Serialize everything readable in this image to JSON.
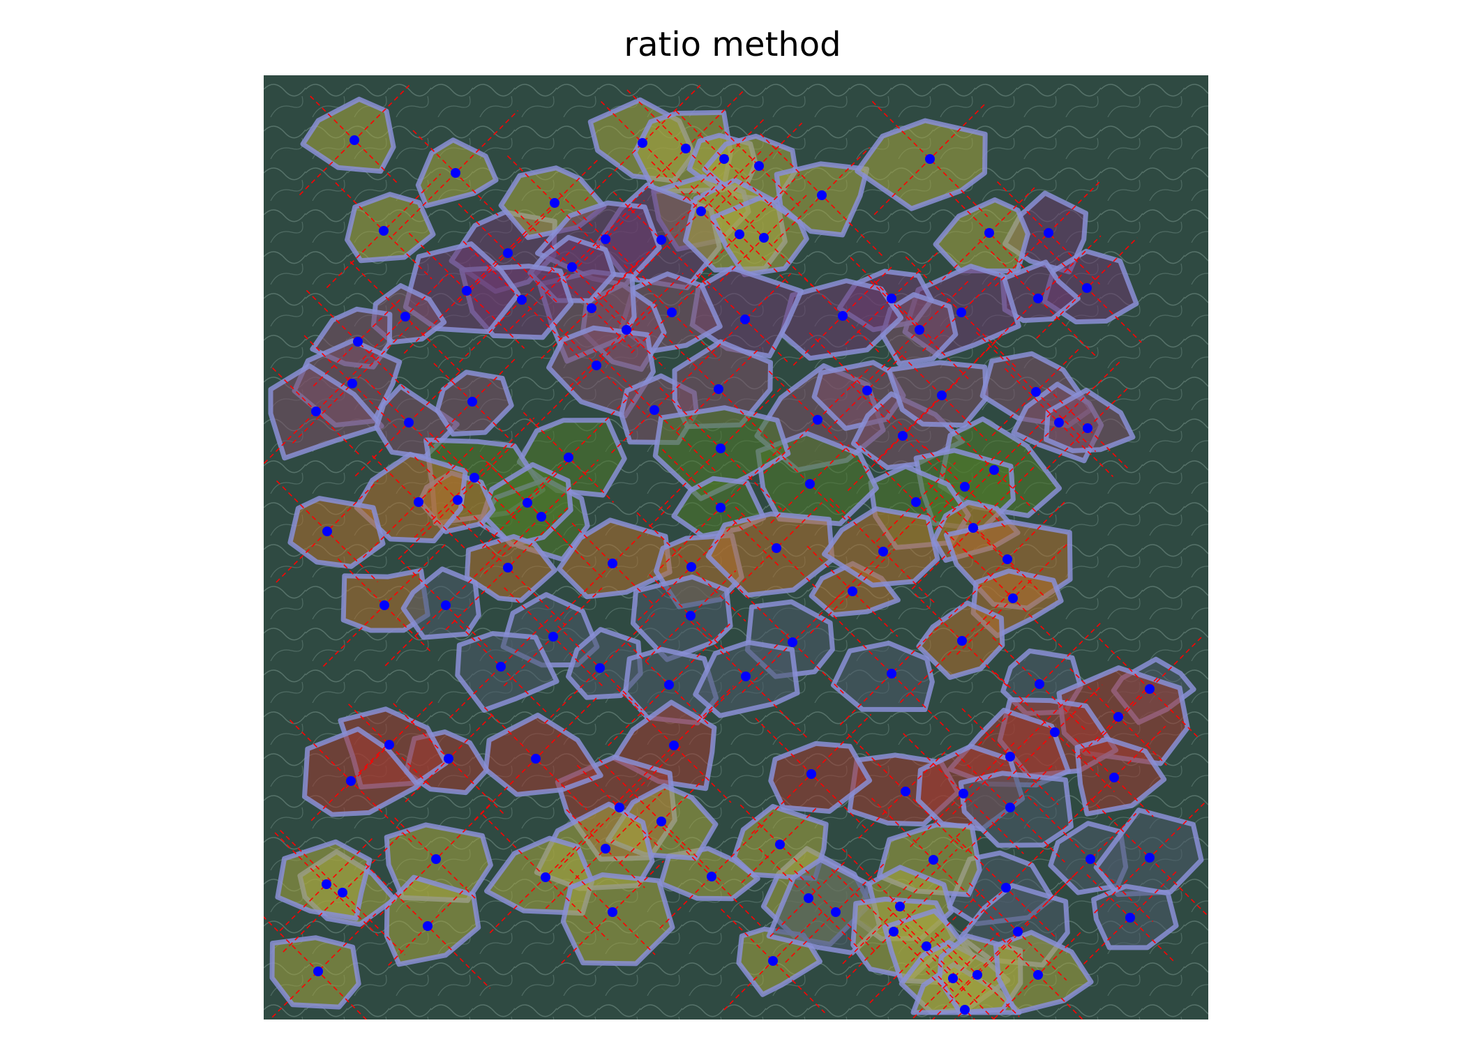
{
  "title": "ratio method",
  "colors": {
    "background_tissue": "#2f4a42",
    "outline": "#8a8fd6",
    "centroid": "#0000ff",
    "axis_line": "#ff0000",
    "fill_yellow": "#a6a640",
    "fill_purple": "#6a3a6e",
    "fill_green": "#4f7a2a",
    "fill_orange": "#b0702e",
    "fill_red": "#a03a32",
    "fill_slate": "#4a5a6a",
    "fill_mauve": "#7a4f66"
  }
}
